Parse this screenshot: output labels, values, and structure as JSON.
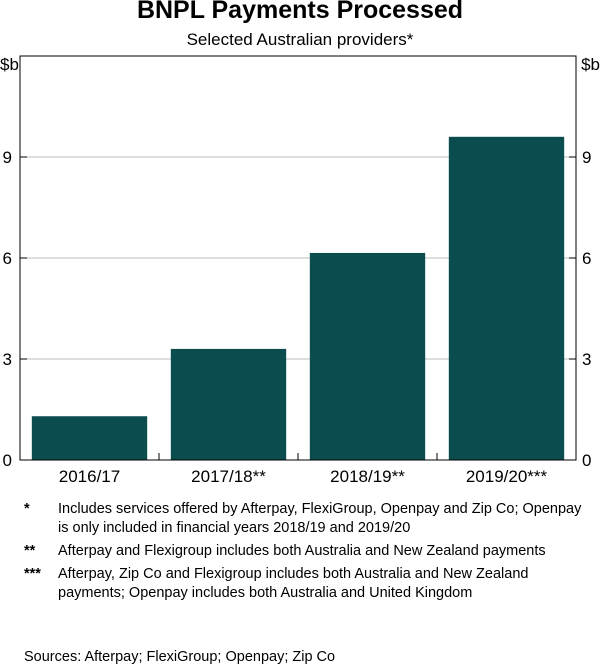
{
  "chart_data": {
    "type": "bar",
    "title": "BNPL Payments Processed",
    "subtitle": "Selected Australian providers*",
    "ylabel_left": "$b",
    "ylabel_right": "$b",
    "ylim": [
      0,
      12
    ],
    "yticks": [
      0,
      3,
      6,
      9
    ],
    "categories": [
      "2016/17",
      "2017/18**",
      "2018/19**",
      "2019/20***"
    ],
    "values": [
      1.3,
      3.3,
      6.15,
      9.6
    ],
    "bar_color": "#0b4c4f",
    "grid": true
  },
  "notes": [
    {
      "mark": "*",
      "text": "Includes services offered by Afterpay, FlexiGroup, Openpay and Zip Co; Openpay is only included in financial years 2018/19 and 2019/20"
    },
    {
      "mark": "**",
      "text": "Afterpay and Flexigroup includes both Australia and New Zealand payments"
    },
    {
      "mark": "***",
      "text": "Afterpay, Zip Co and Flexigroup includes both Australia and New Zealand payments; Openpay includes both Australia and United Kingdom"
    }
  ],
  "sources": "Sources: Afterpay; FlexiGroup; Openpay; Zip Co"
}
